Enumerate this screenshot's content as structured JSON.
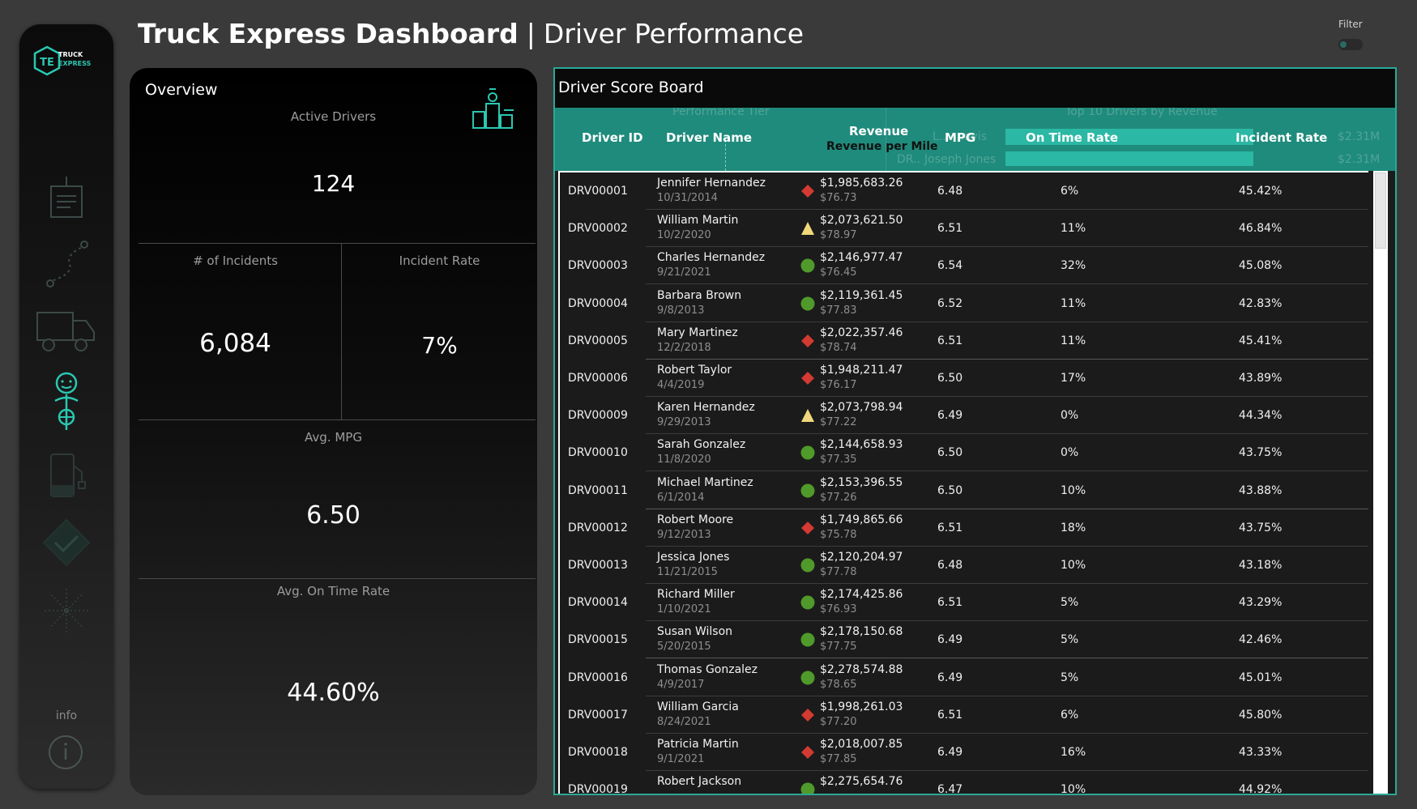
{
  "header": {
    "title_bold": "Truck Express Dashboard",
    "separator": "|",
    "title_sub": "Driver Performance"
  },
  "filter": {
    "label": "Filter"
  },
  "sidebar": {
    "logo": {
      "mark": "TE",
      "line1": "TRUCK",
      "line2": "EXPRESS"
    },
    "icons": [
      "document-icon",
      "route-icon",
      "truck-icon",
      "driver-icon",
      "fuel-pump-icon",
      "checkmark-shield-icon",
      "network-icon"
    ],
    "info_label": "info"
  },
  "overview": {
    "title": "Overview",
    "active_drivers_label": "Active Drivers",
    "active_drivers_value": "124",
    "incidents_label": "# of Incidents",
    "incidents_value": "6,084",
    "incident_rate_label": "Incident Rate",
    "incident_rate_value": "7%",
    "avg_mpg_label": "Avg. MPG",
    "avg_mpg_value": "6.50",
    "avg_otr_label": "Avg. On Time Rate",
    "avg_otr_value": "44.60%"
  },
  "scoreboard": {
    "title": "Driver Score Board",
    "ghost": {
      "performance_tier": "Performance Tier",
      "top10": "Top 10 Drivers by Revenue",
      "row1_name": "L...    ...avis",
      "row1_value": "$2.31M",
      "row2_id": "DR..",
      "row2_name": "Joseph Jones",
      "row2_value": "$2.31M"
    },
    "columns": {
      "driver_id": "Driver ID",
      "driver_name": "Driver Name",
      "revenue": "Revenue",
      "revenue_per_mile": "Revenue per Mile",
      "mpg": "MPG",
      "on_time_rate": "On Time Rate",
      "incident_rate": "Incident Rate"
    },
    "colors": {
      "green": "#4f9a2a",
      "red": "#d23a32",
      "yellow": "#f0d77c",
      "teal": "#2bc7b1"
    },
    "rows": [
      {
        "id": "DRV00001",
        "name": "Jennifer Hernandez",
        "date": "10/31/2014",
        "tier": "diamond-red",
        "revenue": "$1,985,683.26",
        "rpm": "$76.73",
        "mpg": "6.48",
        "otr": "6%",
        "incident": "45.42%"
      },
      {
        "id": "DRV00002",
        "name": "William Martin",
        "date": "10/2/2020",
        "tier": "triangle-yellow",
        "revenue": "$2,073,621.50",
        "rpm": "$78.97",
        "mpg": "6.51",
        "otr": "11%",
        "incident": "46.84%"
      },
      {
        "id": "DRV00003",
        "name": "Charles Hernandez",
        "date": "9/21/2021",
        "tier": "circle-green",
        "revenue": "$2,146,977.47",
        "rpm": "$76.45",
        "mpg": "6.54",
        "otr": "32%",
        "incident": "45.08%"
      },
      {
        "id": "DRV00004",
        "name": "Barbara Brown",
        "date": "9/8/2013",
        "tier": "circle-green",
        "revenue": "$2,119,361.45",
        "rpm": "$77.83",
        "mpg": "6.52",
        "otr": "11%",
        "incident": "42.83%"
      },
      {
        "id": "DRV00005",
        "name": "Mary Martinez",
        "date": "12/2/2018",
        "tier": "diamond-red",
        "revenue": "$2,022,357.46",
        "rpm": "$78.74",
        "mpg": "6.51",
        "otr": "11%",
        "incident": "45.41%"
      },
      {
        "id": "DRV00006",
        "name": "Robert Taylor",
        "date": "4/4/2019",
        "tier": "diamond-red",
        "revenue": "$1,948,211.47",
        "rpm": "$76.17",
        "mpg": "6.50",
        "otr": "17%",
        "incident": "43.89%"
      },
      {
        "id": "DRV00009",
        "name": "Karen Hernandez",
        "date": "9/29/2013",
        "tier": "triangle-yellow",
        "revenue": "$2,073,798.94",
        "rpm": "$77.22",
        "mpg": "6.49",
        "otr": "0%",
        "incident": "44.34%"
      },
      {
        "id": "DRV00010",
        "name": "Sarah Gonzalez",
        "date": "11/8/2020",
        "tier": "circle-green",
        "revenue": "$2,144,658.93",
        "rpm": "$77.35",
        "mpg": "6.50",
        "otr": "0%",
        "incident": "43.75%"
      },
      {
        "id": "DRV00011",
        "name": "Michael Martinez",
        "date": "6/1/2014",
        "tier": "circle-green",
        "revenue": "$2,153,396.55",
        "rpm": "$77.26",
        "mpg": "6.50",
        "otr": "10%",
        "incident": "43.88%"
      },
      {
        "id": "DRV00012",
        "name": "Robert Moore",
        "date": "9/12/2013",
        "tier": "diamond-red",
        "revenue": "$1,749,865.66",
        "rpm": "$75.78",
        "mpg": "6.51",
        "otr": "18%",
        "incident": "43.75%"
      },
      {
        "id": "DRV00013",
        "name": "Jessica Jones",
        "date": "11/21/2015",
        "tier": "circle-green",
        "revenue": "$2,120,204.97",
        "rpm": "$77.78",
        "mpg": "6.48",
        "otr": "10%",
        "incident": "43.18%"
      },
      {
        "id": "DRV00014",
        "name": "Richard Miller",
        "date": "1/10/2021",
        "tier": "circle-green",
        "revenue": "$2,174,425.86",
        "rpm": "$76.93",
        "mpg": "6.51",
        "otr": "5%",
        "incident": "43.29%"
      },
      {
        "id": "DRV00015",
        "name": "Susan Wilson",
        "date": "5/20/2015",
        "tier": "circle-green",
        "revenue": "$2,178,150.68",
        "rpm": "$77.75",
        "mpg": "6.49",
        "otr": "5%",
        "incident": "42.46%"
      },
      {
        "id": "DRV00016",
        "name": "Thomas Gonzalez",
        "date": "4/9/2017",
        "tier": "circle-green",
        "revenue": "$2,278,574.88",
        "rpm": "$78.65",
        "mpg": "6.49",
        "otr": "5%",
        "incident": "45.01%"
      },
      {
        "id": "DRV00017",
        "name": "William Garcia",
        "date": "8/24/2021",
        "tier": "diamond-red",
        "revenue": "$1,998,261.03",
        "rpm": "$77.20",
        "mpg": "6.51",
        "otr": "6%",
        "incident": "45.80%"
      },
      {
        "id": "DRV00018",
        "name": "Patricia Martin",
        "date": "9/1/2021",
        "tier": "diamond-red",
        "revenue": "$2,018,007.85",
        "rpm": "$77.85",
        "mpg": "6.49",
        "otr": "16%",
        "incident": "43.33%"
      },
      {
        "id": "DRV00019",
        "name": "Robert Jackson",
        "date": "",
        "tier": "circle-green",
        "revenue": "$2,275,654.76",
        "rpm": "",
        "mpg": "6.47",
        "otr": "10%",
        "incident": "44.92%"
      }
    ]
  }
}
